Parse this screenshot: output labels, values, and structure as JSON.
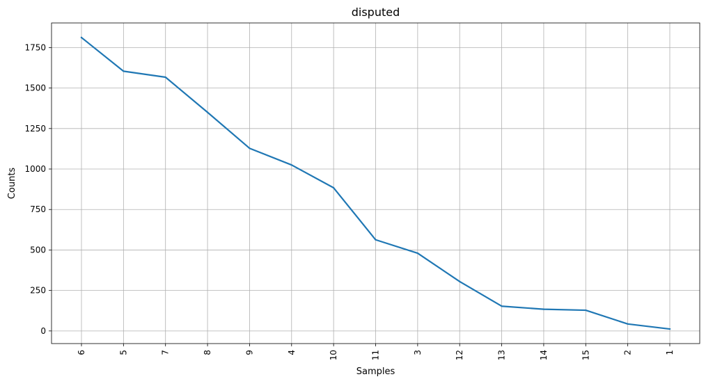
{
  "chart_data": {
    "type": "line",
    "title": "disputed",
    "xlabel": "Samples",
    "ylabel": "Counts",
    "categories": [
      "6",
      "5",
      "7",
      "8",
      "9",
      "4",
      "10",
      "11",
      "3",
      "12",
      "13",
      "14",
      "15",
      "2",
      "1"
    ],
    "values": [
      1812,
      1604,
      1567,
      1350,
      1128,
      1025,
      884,
      563,
      480,
      305,
      153,
      134,
      128,
      43,
      12
    ],
    "yticks": [
      0,
      250,
      500,
      750,
      1000,
      1250,
      1500,
      1750
    ],
    "ylim": [
      -78,
      1902
    ],
    "grid": true,
    "series_color": "#1f77b4",
    "grid_color": "#b0b0b0"
  }
}
